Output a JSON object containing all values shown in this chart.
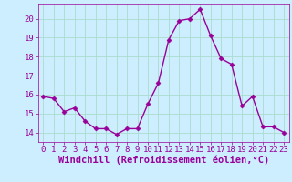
{
  "x": [
    0,
    1,
    2,
    3,
    4,
    5,
    6,
    7,
    8,
    9,
    10,
    11,
    12,
    13,
    14,
    15,
    16,
    17,
    18,
    19,
    20,
    21,
    22,
    23
  ],
  "y": [
    15.9,
    15.8,
    15.1,
    15.3,
    14.6,
    14.2,
    14.2,
    13.9,
    14.2,
    14.2,
    15.5,
    16.6,
    18.9,
    19.9,
    20.0,
    20.5,
    19.1,
    17.9,
    17.6,
    15.4,
    15.9,
    14.3,
    14.3,
    14.0
  ],
  "line_color": "#990099",
  "marker": "D",
  "markersize": 2.5,
  "linewidth": 1.0,
  "bg_color": "#cceeff",
  "grid_color": "#aaddcc",
  "tick_color": "#990099",
  "xlabel": "Windchill (Refroidissement éolien,°C)",
  "xlim": [
    -0.5,
    23.5
  ],
  "ylim": [
    13.5,
    20.8
  ],
  "yticks": [
    14,
    15,
    16,
    17,
    18,
    19,
    20
  ],
  "xticks": [
    0,
    1,
    2,
    3,
    4,
    5,
    6,
    7,
    8,
    9,
    10,
    11,
    12,
    13,
    14,
    15,
    16,
    17,
    18,
    19,
    20,
    21,
    22,
    23
  ],
  "font_color": "#990099",
  "font_size": 6.5,
  "xlabel_fontsize": 7.5
}
